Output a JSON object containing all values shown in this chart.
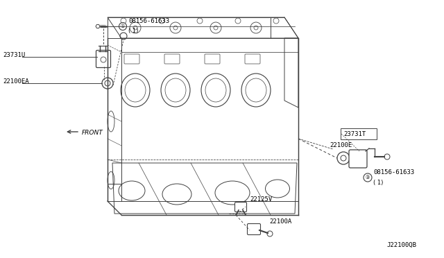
{
  "background_color": "#ffffff",
  "line_color": "#404040",
  "text_color": "#000000",
  "fig_width": 6.4,
  "fig_height": 3.72,
  "dpi": 100,
  "labels": {
    "top_bolt_part": "08156-61633",
    "top_bolt_sub": "( 1)",
    "left_sensor": "23731U",
    "left_gasket": "22100EA",
    "right_sensor_top": "23731T",
    "right_gasket": "22100E",
    "right_bolt_part": "08156-61633",
    "right_bolt_sub": "( 1)",
    "bottom_label1": "22125V",
    "bottom_label2": "22100A",
    "front_label": "FRONT",
    "diagram_id": "J22100QB"
  }
}
